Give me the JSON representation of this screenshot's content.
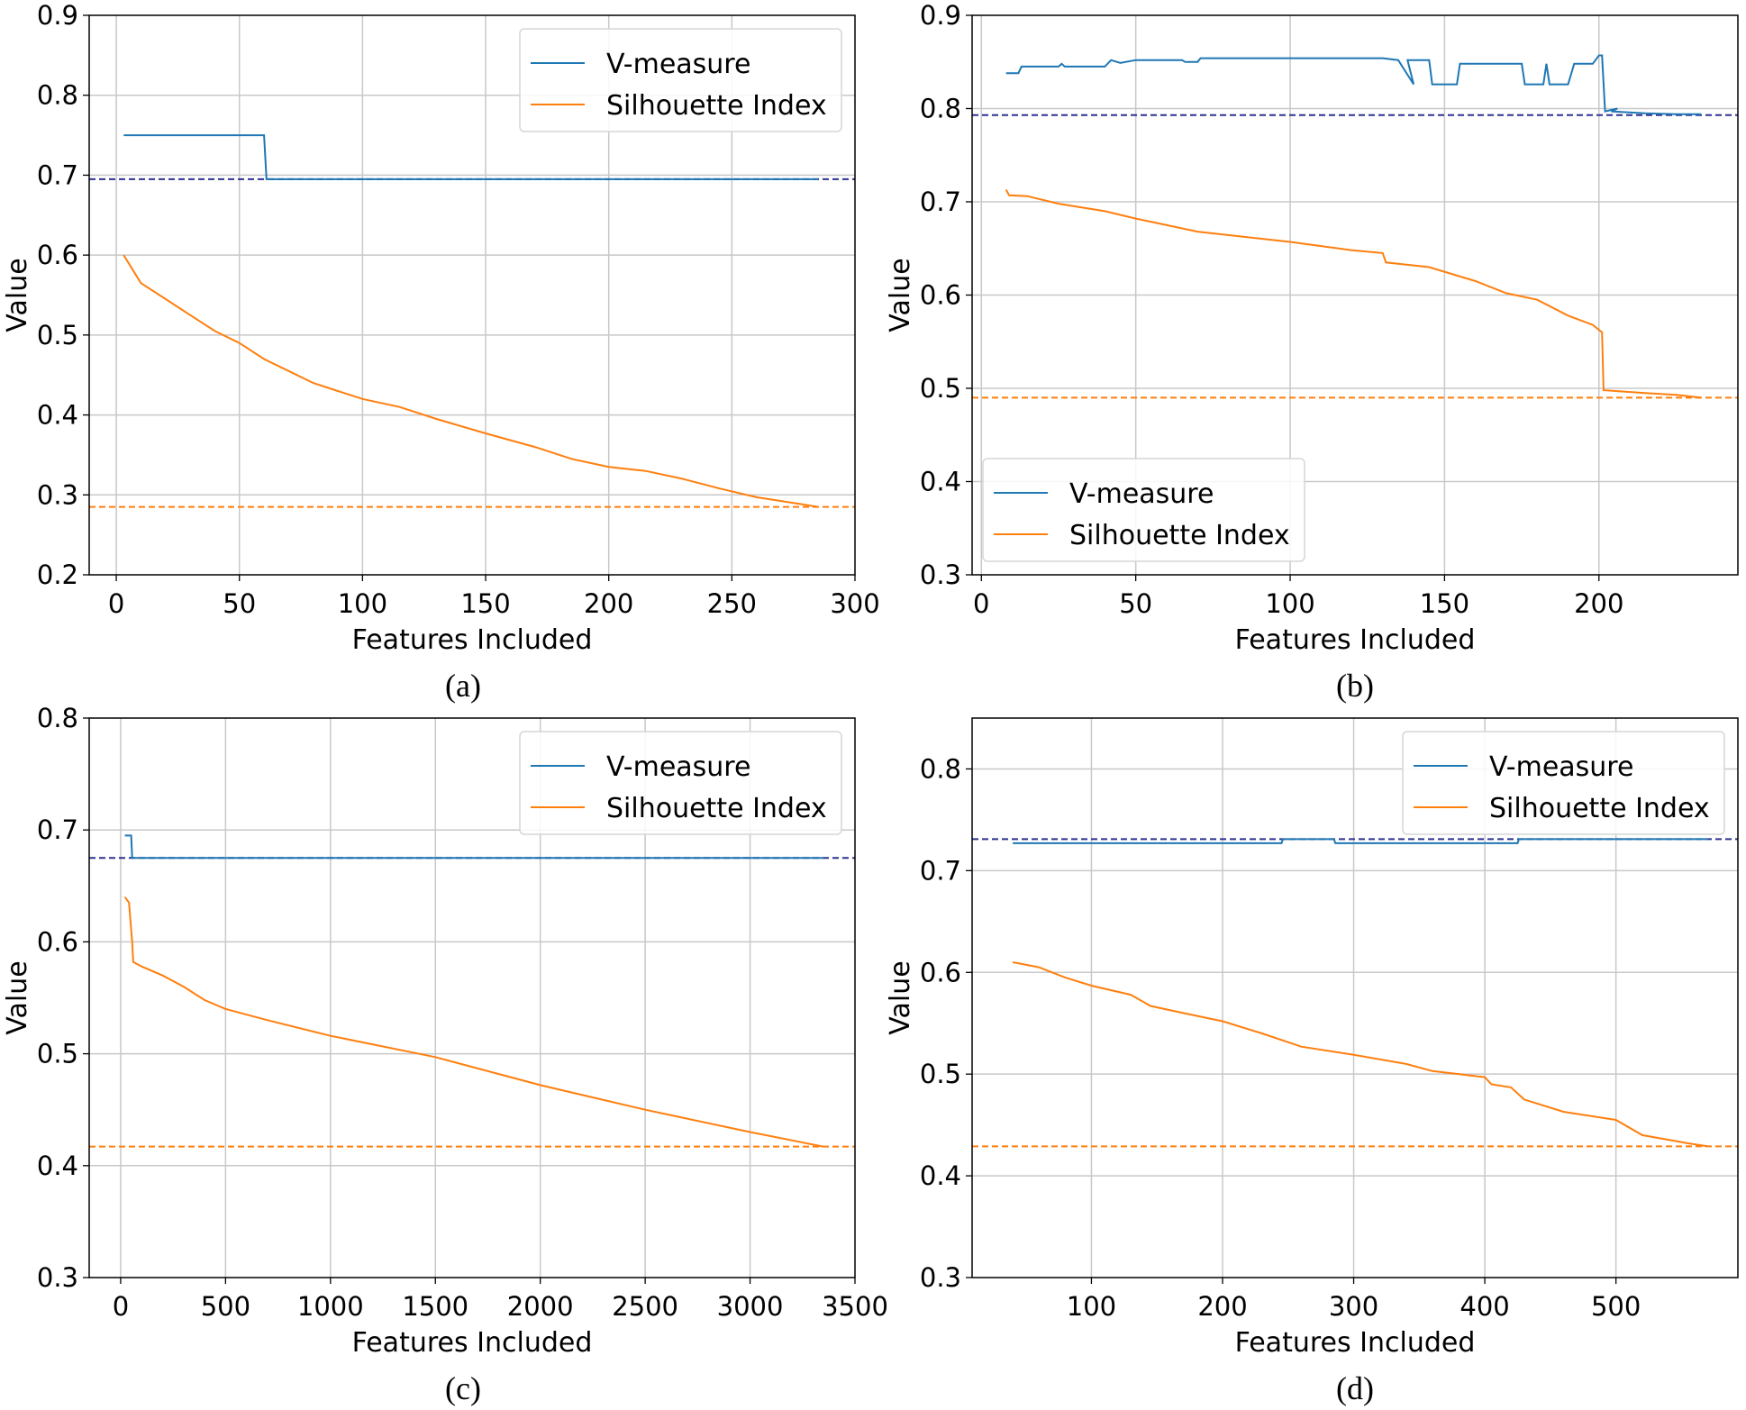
{
  "colors": {
    "vmeasure": "#1f77b4",
    "silhouette": "#ff7f0e",
    "v_baseline": "#2e3192",
    "s_baseline": "#ff7f0e",
    "grid": "#c8c8c8"
  },
  "chart_data": [
    {
      "type": "line",
      "caption": "(a)",
      "xlabel": "Features Included",
      "ylabel": "Value",
      "xlim": [
        -11,
        300
      ],
      "ylim": [
        0.2,
        0.9
      ],
      "xticks": [
        0,
        50,
        100,
        150,
        200,
        250,
        300
      ],
      "yticks": [
        0.2,
        0.3,
        0.4,
        0.5,
        0.6,
        0.7,
        0.8,
        0.9
      ],
      "legend": "top-right",
      "grid": true,
      "baselines": {
        "vmeasure": 0.695,
        "silhouette": 0.285
      },
      "series": [
        {
          "name": "V-measure",
          "points": [
            [
              3,
              0.75
            ],
            [
              60,
              0.75
            ],
            [
              61,
              0.695
            ],
            [
              285,
              0.695
            ]
          ]
        },
        {
          "name": "Silhouette Index",
          "points": [
            [
              3,
              0.6
            ],
            [
              8,
              0.575
            ],
            [
              10,
              0.565
            ],
            [
              20,
              0.545
            ],
            [
              30,
              0.525
            ],
            [
              40,
              0.505
            ],
            [
              50,
              0.49
            ],
            [
              60,
              0.47
            ],
            [
              70,
              0.455
            ],
            [
              80,
              0.44
            ],
            [
              90,
              0.43
            ],
            [
              100,
              0.42
            ],
            [
              115,
              0.41
            ],
            [
              130,
              0.395
            ],
            [
              150,
              0.377
            ],
            [
              170,
              0.36
            ],
            [
              185,
              0.345
            ],
            [
              200,
              0.335
            ],
            [
              215,
              0.33
            ],
            [
              230,
              0.32
            ],
            [
              245,
              0.308
            ],
            [
              260,
              0.297
            ],
            [
              275,
              0.29
            ],
            [
              285,
              0.285
            ]
          ]
        }
      ]
    },
    {
      "type": "line",
      "caption": "(b)",
      "xlabel": "Features Included",
      "ylabel": "Value",
      "xlim": [
        -3,
        245
      ],
      "ylim": [
        0.3,
        0.9
      ],
      "xticks": [
        0,
        50,
        100,
        150,
        200
      ],
      "yticks": [
        0.3,
        0.4,
        0.5,
        0.6,
        0.7,
        0.8,
        0.9
      ],
      "legend": "lower-left",
      "grid": true,
      "baselines": {
        "vmeasure": 0.793,
        "silhouette": 0.49
      },
      "series": [
        {
          "name": "V-measure",
          "points": [
            [
              8,
              0.838
            ],
            [
              12,
              0.838
            ],
            [
              13,
              0.845
            ],
            [
              25,
              0.845
            ],
            [
              26,
              0.848
            ],
            [
              27,
              0.845
            ],
            [
              40,
              0.845
            ],
            [
              42,
              0.852
            ],
            [
              45,
              0.849
            ],
            [
              50,
              0.852
            ],
            [
              65,
              0.852
            ],
            [
              66,
              0.85
            ],
            [
              70,
              0.85
            ],
            [
              71,
              0.854
            ],
            [
              130,
              0.854
            ],
            [
              135,
              0.852
            ],
            [
              140,
              0.826
            ],
            [
              138,
              0.852
            ],
            [
              145,
              0.852
            ],
            [
              146,
              0.826
            ],
            [
              154,
              0.826
            ],
            [
              155,
              0.848
            ],
            [
              175,
              0.848
            ],
            [
              176,
              0.826
            ],
            [
              182,
              0.826
            ],
            [
              183,
              0.848
            ],
            [
              184,
              0.826
            ],
            [
              190,
              0.826
            ],
            [
              192,
              0.848
            ],
            [
              198,
              0.848
            ],
            [
              200,
              0.857
            ],
            [
              201,
              0.857
            ],
            [
              202,
              0.797
            ],
            [
              206,
              0.8
            ],
            [
              204,
              0.797
            ],
            [
              215,
              0.795
            ],
            [
              225,
              0.794
            ],
            [
              233,
              0.794
            ]
          ]
        },
        {
          "name": "Silhouette Index",
          "points": [
            [
              8,
              0.713
            ],
            [
              9,
              0.707
            ],
            [
              15,
              0.706
            ],
            [
              25,
              0.698
            ],
            [
              40,
              0.69
            ],
            [
              50,
              0.682
            ],
            [
              70,
              0.668
            ],
            [
              100,
              0.657
            ],
            [
              120,
              0.648
            ],
            [
              130,
              0.645
            ],
            [
              131,
              0.635
            ],
            [
              145,
              0.63
            ],
            [
              160,
              0.615
            ],
            [
              170,
              0.602
            ],
            [
              180,
              0.595
            ],
            [
              190,
              0.578
            ],
            [
              198,
              0.568
            ],
            [
              201,
              0.56
            ],
            [
              201.5,
              0.498
            ],
            [
              215,
              0.495
            ],
            [
              225,
              0.493
            ],
            [
              233,
              0.49
            ]
          ]
        }
      ]
    },
    {
      "type": "line",
      "caption": "(c)",
      "xlabel": "Features Included",
      "ylabel": "Value",
      "xlim": [
        -150,
        3500
      ],
      "ylim": [
        0.3,
        0.8
      ],
      "xticks": [
        0,
        500,
        1000,
        1500,
        2000,
        2500,
        3000,
        3500
      ],
      "yticks": [
        0.3,
        0.4,
        0.5,
        0.6,
        0.7,
        0.8
      ],
      "legend": "top-right",
      "grid": true,
      "baselines": {
        "vmeasure": 0.675,
        "silhouette": 0.417
      },
      "series": [
        {
          "name": "V-measure",
          "points": [
            [
              20,
              0.695
            ],
            [
              50,
              0.695
            ],
            [
              55,
              0.675
            ],
            [
              3350,
              0.675
            ]
          ]
        },
        {
          "name": "Silhouette Index",
          "points": [
            [
              20,
              0.64
            ],
            [
              40,
              0.635
            ],
            [
              55,
              0.6
            ],
            [
              60,
              0.582
            ],
            [
              100,
              0.578
            ],
            [
              200,
              0.57
            ],
            [
              300,
              0.56
            ],
            [
              400,
              0.548
            ],
            [
              500,
              0.54
            ],
            [
              700,
              0.53
            ],
            [
              1000,
              0.516
            ],
            [
              1500,
              0.497
            ],
            [
              2000,
              0.472
            ],
            [
              2500,
              0.45
            ],
            [
              3000,
              0.43
            ],
            [
              3350,
              0.417
            ]
          ]
        }
      ]
    },
    {
      "type": "line",
      "caption": "(d)",
      "xlabel": "Features Included",
      "ylabel": "Value",
      "xlim": [
        9,
        593
      ],
      "ylim": [
        0.3,
        0.85
      ],
      "xticks": [
        100,
        200,
        300,
        400,
        500
      ],
      "yticks": [
        0.3,
        0.4,
        0.5,
        0.6,
        0.7,
        0.8
      ],
      "legend": "top-right",
      "grid": true,
      "baselines": {
        "vmeasure": 0.731,
        "silhouette": 0.429
      },
      "series": [
        {
          "name": "V-measure",
          "points": [
            [
              40,
              0.727
            ],
            [
              245,
              0.727
            ],
            [
              246,
              0.731
            ],
            [
              285,
              0.731
            ],
            [
              286,
              0.727
            ],
            [
              425,
              0.727
            ],
            [
              426,
              0.731
            ],
            [
              570,
              0.731
            ]
          ]
        },
        {
          "name": "Silhouette Index",
          "points": [
            [
              40,
              0.61
            ],
            [
              60,
              0.605
            ],
            [
              80,
              0.595
            ],
            [
              100,
              0.587
            ],
            [
              130,
              0.578
            ],
            [
              145,
              0.567
            ],
            [
              170,
              0.56
            ],
            [
              200,
              0.552
            ],
            [
              230,
              0.54
            ],
            [
              260,
              0.527
            ],
            [
              300,
              0.519
            ],
            [
              340,
              0.51
            ],
            [
              360,
              0.503
            ],
            [
              400,
              0.497
            ],
            [
              405,
              0.49
            ],
            [
              420,
              0.487
            ],
            [
              430,
              0.475
            ],
            [
              460,
              0.463
            ],
            [
              500,
              0.455
            ],
            [
              520,
              0.44
            ],
            [
              555,
              0.432
            ],
            [
              570,
              0.429
            ]
          ]
        }
      ]
    }
  ]
}
